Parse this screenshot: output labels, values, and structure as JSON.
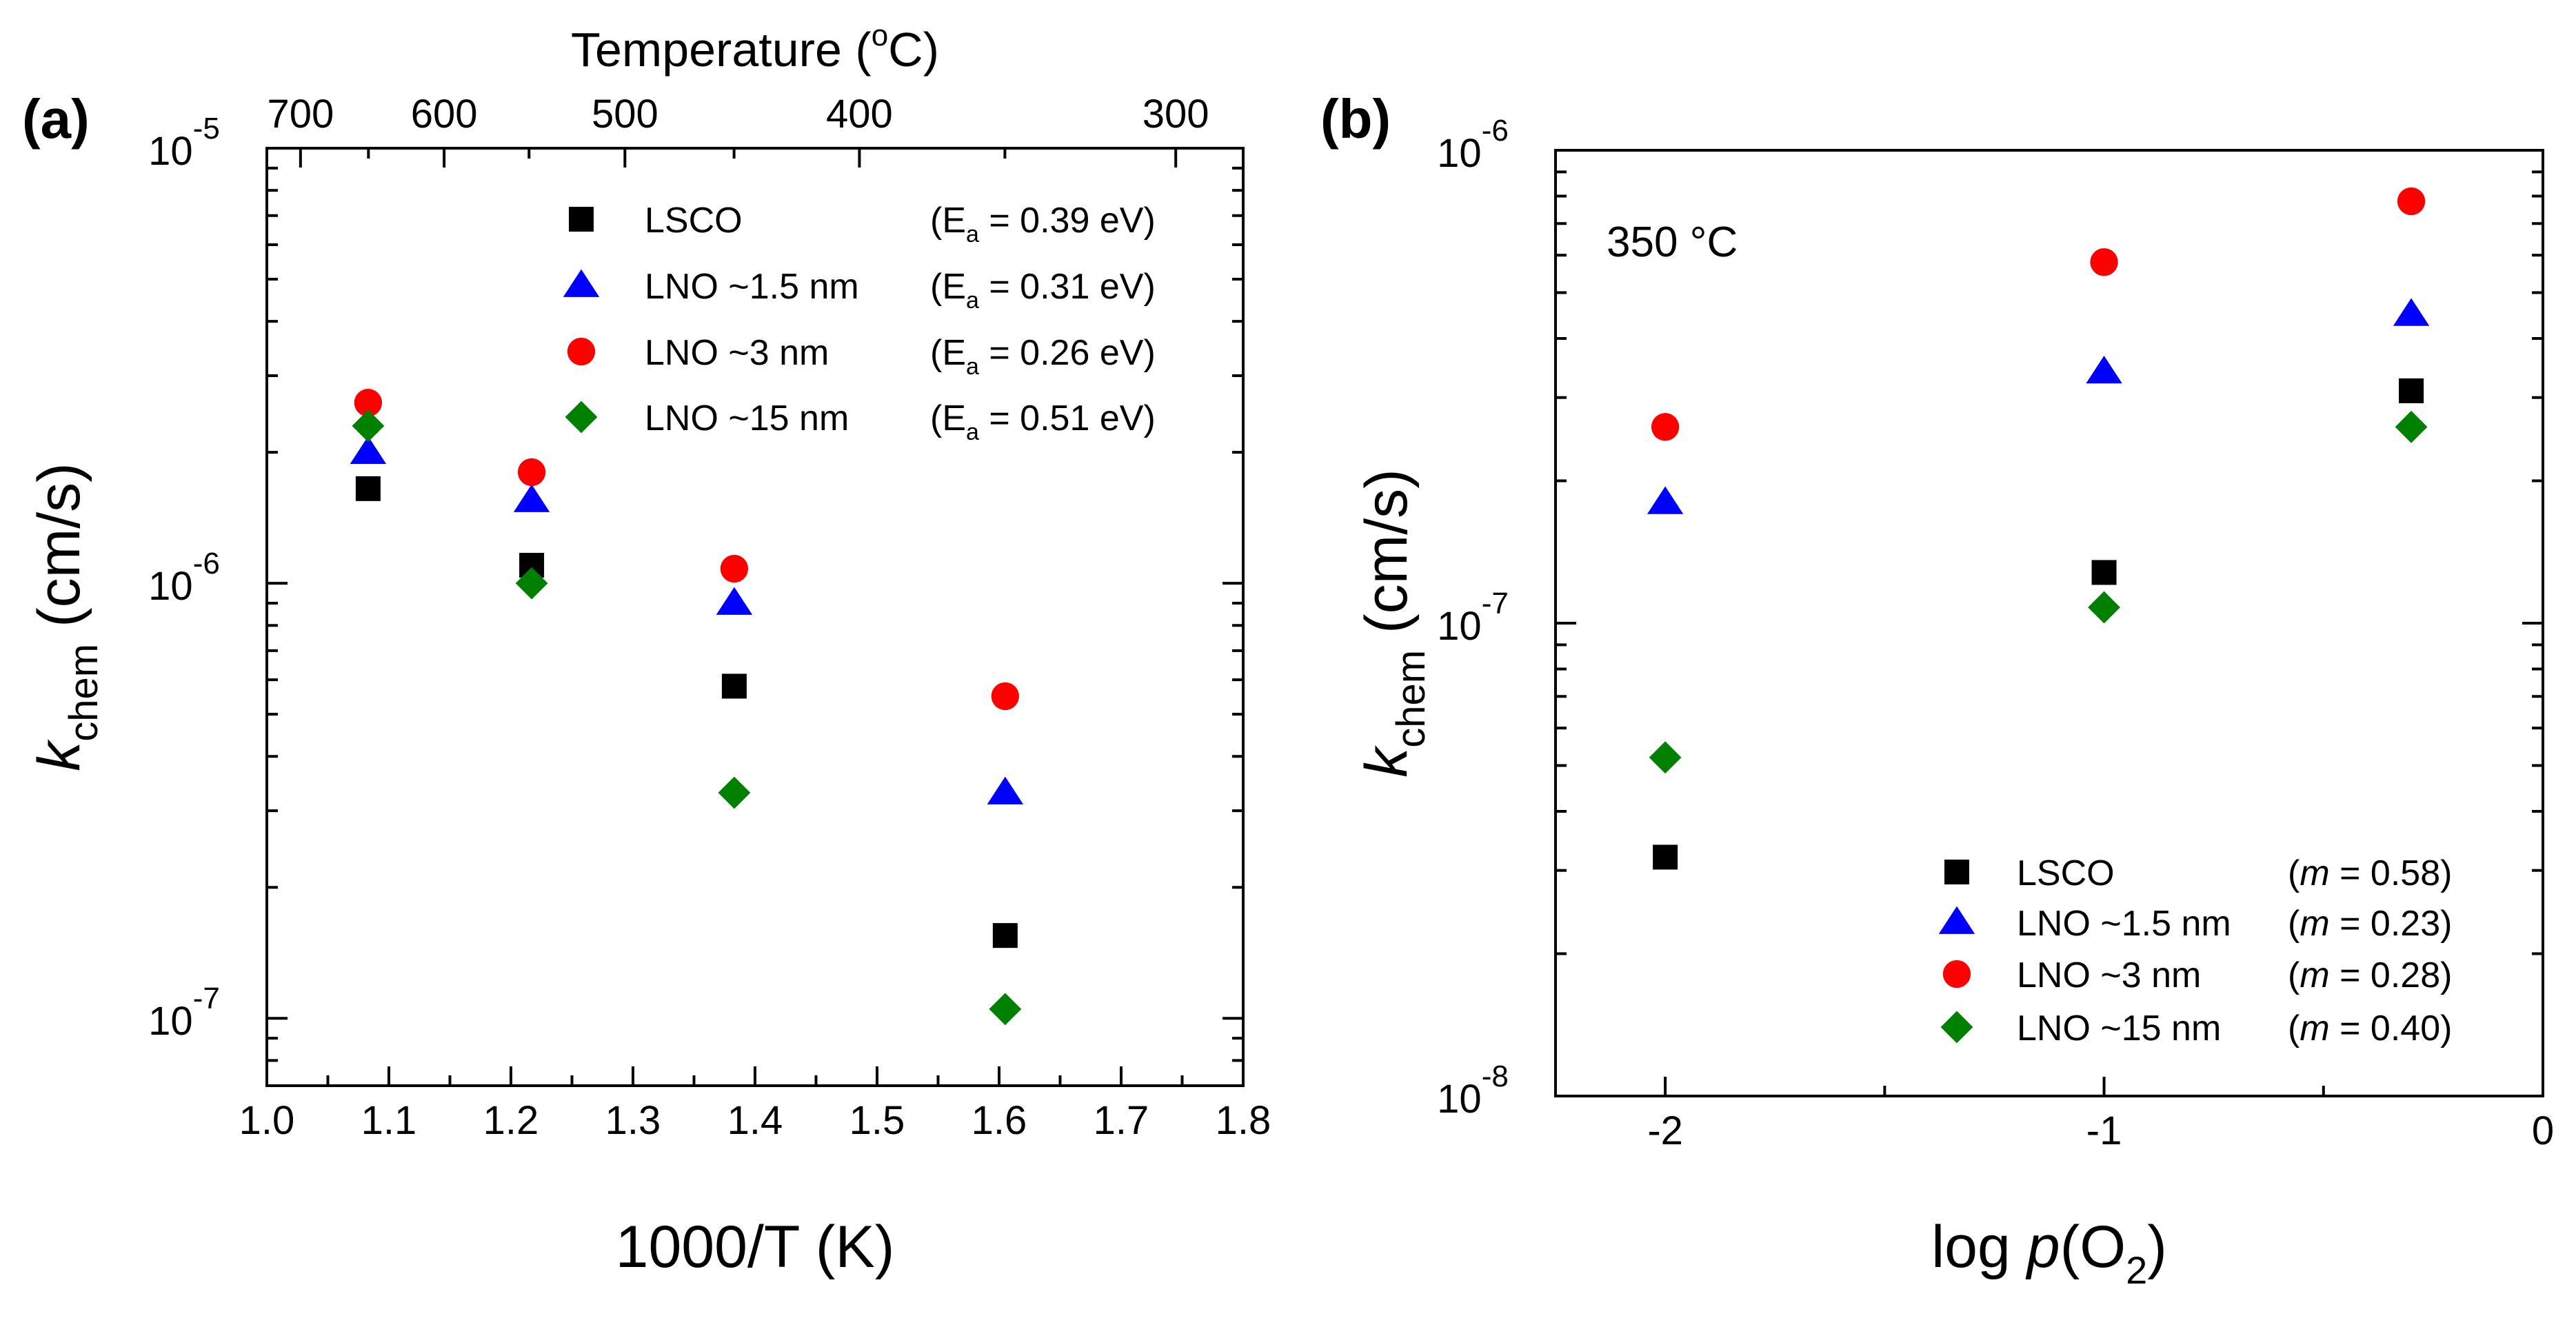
{
  "chart_data": [
    {
      "type": "scatter",
      "panel_label": "(a)",
      "xlabel": "1000/T (K)",
      "ylabel": {
        "main": "k",
        "sub": "chem",
        "unit": " (cm/s)"
      },
      "xlim": [
        1.0,
        1.8
      ],
      "ylim": [
        0.07,
        10
      ],
      "yscale": "log",
      "x_ticks": [
        "1.0",
        "1.1",
        "1.2",
        "1.3",
        "1.4",
        "1.5",
        "1.6",
        "1.7",
        "1.8"
      ],
      "y_ticks": [
        {
          "base": "10",
          "exp": "-7",
          "value": 0.1
        },
        {
          "base": "10",
          "exp": "-6",
          "value": 1
        },
        {
          "base": "10",
          "exp": "-5",
          "value": 10
        }
      ],
      "y_unit_note": "values in units of 1e-6 cm/s",
      "top_axis": {
        "label_main": "Temperature (",
        "label_sup": "o",
        "label_end": "C)",
        "ticks": [
          {
            "label": "700",
            "value": 700
          },
          {
            "label": "600",
            "value": 600
          },
          {
            "label": "500",
            "value": 500
          },
          {
            "label": "400",
            "value": 400
          },
          {
            "label": "300",
            "value": 300
          }
        ]
      },
      "series": [
        {
          "name": "LSCO",
          "marker": "square",
          "color": "#000000",
          "note_pre": "(E",
          "note_sub": "a",
          "note_post": " = 0.39 eV)",
          "x": [
            1.083,
            1.217,
            1.383,
            1.605
          ],
          "y": [
            1.65,
            1.1,
            0.58,
            0.155
          ]
        },
        {
          "name": "LNO ~1.5 nm",
          "marker": "triangle",
          "color": "#0000ff",
          "note_pre": "(E",
          "note_sub": "a",
          "note_post": " = 0.31 eV)",
          "x": [
            1.083,
            1.217,
            1.383,
            1.605
          ],
          "y": [
            2.0,
            1.55,
            0.9,
            0.33
          ]
        },
        {
          "name": "LNO ~3 nm",
          "marker": "circle",
          "color": "#ff0000",
          "note_pre": "(E",
          "note_sub": "a",
          "note_post": " = 0.26 eV)",
          "x": [
            1.083,
            1.217,
            1.383,
            1.605
          ],
          "y": [
            2.6,
            1.8,
            1.08,
            0.55
          ]
        },
        {
          "name": "LNO ~15 nm",
          "marker": "diamond",
          "color": "#008000",
          "note_pre": "(E",
          "note_sub": "a",
          "note_post": " = 0.51 eV)",
          "x": [
            1.083,
            1.217,
            1.383,
            1.605
          ],
          "y": [
            2.3,
            1.0,
            0.33,
            0.105
          ]
        }
      ]
    },
    {
      "type": "scatter",
      "panel_label": "(b)",
      "xlabel": {
        "pre": "log ",
        "italic": "p",
        "mid": "(O",
        "sub": "2",
        "post": ")"
      },
      "ylabel": {
        "main": "k",
        "sub": "chem",
        "unit": " (cm/s)"
      },
      "xlim": [
        -2.25,
        0
      ],
      "ylim": [
        0.01,
        1
      ],
      "yscale": "log",
      "x_ticks": [
        {
          "label": "-2",
          "value": -2
        },
        {
          "label": "-1",
          "value": -1
        },
        {
          "label": "0",
          "value": 0
        }
      ],
      "y_ticks": [
        {
          "base": "10",
          "exp": "-8",
          "value": 0.01
        },
        {
          "base": "10",
          "exp": "-7",
          "value": 0.1
        },
        {
          "base": "10",
          "exp": "-6",
          "value": 1
        }
      ],
      "y_unit_note": "values in units of 1e-6 cm/s",
      "annotation": "350 °C",
      "series": [
        {
          "name": "LSCO",
          "marker": "square",
          "color": "#000000",
          "note_pre": "(",
          "note_italic": "m",
          "note_post": " = 0.58)",
          "x": [
            -2,
            -1,
            -0.3
          ],
          "y": [
            0.032,
            0.128,
            0.31
          ]
        },
        {
          "name": "LNO ~1.5 nm",
          "marker": "triangle",
          "color": "#0000ff",
          "note_pre": "(",
          "note_italic": "m",
          "note_post": " = 0.23)",
          "x": [
            -2,
            -1,
            -0.3
          ],
          "y": [
            0.18,
            0.34,
            0.45
          ]
        },
        {
          "name": "LNO ~3 nm",
          "marker": "circle",
          "color": "#ff0000",
          "note_pre": "(",
          "note_italic": "m",
          "note_post": " = 0.28)",
          "x": [
            -2,
            -1,
            -0.3
          ],
          "y": [
            0.26,
            0.58,
            0.78
          ]
        },
        {
          "name": "LNO ~15 nm",
          "marker": "diamond",
          "color": "#008000",
          "note_pre": "(",
          "note_italic": "m",
          "note_post": " = 0.40)",
          "x": [
            -2,
            -1,
            -0.3
          ],
          "y": [
            0.052,
            0.108,
            0.26
          ]
        }
      ]
    }
  ]
}
